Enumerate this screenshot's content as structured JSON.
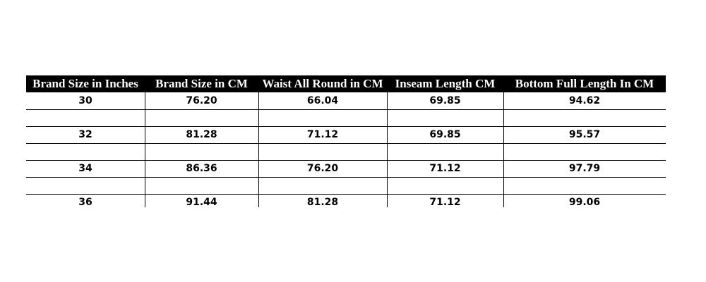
{
  "table": {
    "header": [
      "Brand Size in Inches",
      "Brand Size in CM",
      "Waist All Round in CM",
      "Inseam Length CM",
      "Bottom Full Length In CM"
    ],
    "rows": [
      [
        "30",
        "76.20",
        "66.04",
        "69.85",
        "94.62"
      ],
      [
        "32",
        "81.28",
        "71.12",
        "69.85",
        "95.57"
      ],
      [
        "34",
        "86.36",
        "76.20",
        "71.12",
        "97.79"
      ],
      [
        "36",
        "91.44",
        "81.28",
        "71.12",
        "99.06"
      ]
    ]
  }
}
